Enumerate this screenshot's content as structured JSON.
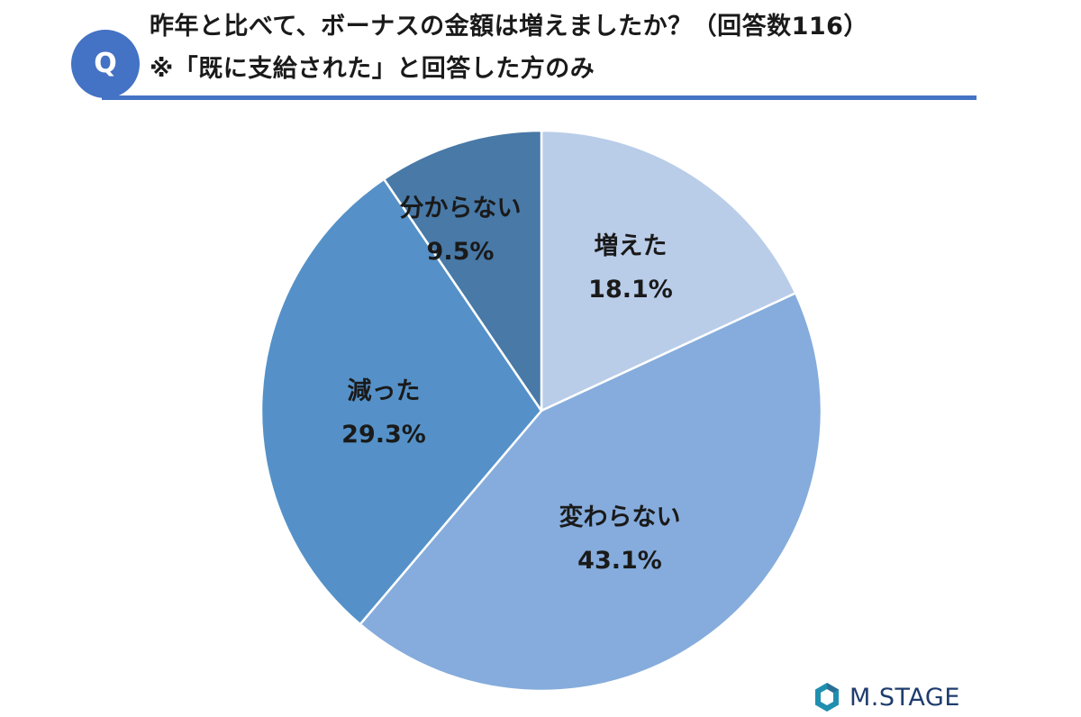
{
  "question_badge": "Q",
  "title": {
    "line1": "昨年と比べて、ボーナスの金額は増えましたか？（回答数116）",
    "line2": "※「既に支給された」と回答した方のみ"
  },
  "chart_data": {
    "type": "pie",
    "title": "昨年と比べて、ボーナスの金額は増えましたか？（回答数116）",
    "slices": [
      {
        "label": "増えた",
        "value": 18.1,
        "value_label": "18.1%",
        "color": "#b9cde9"
      },
      {
        "label": "変わらない",
        "value": 43.1,
        "value_label": "43.1%",
        "color": "#85acdc"
      },
      {
        "label": "減った",
        "value": 29.3,
        "value_label": "29.3%",
        "color": "#5591c8"
      },
      {
        "label": "分からない",
        "value": 9.5,
        "value_label": "9.5%",
        "color": "#4879a7"
      }
    ],
    "start_angle": "12 o'clock",
    "direction": "clockwise",
    "legend": "none",
    "labels": "inside slices"
  },
  "logo": {
    "text": "M.STAGE",
    "color": "#1f3c6e"
  }
}
